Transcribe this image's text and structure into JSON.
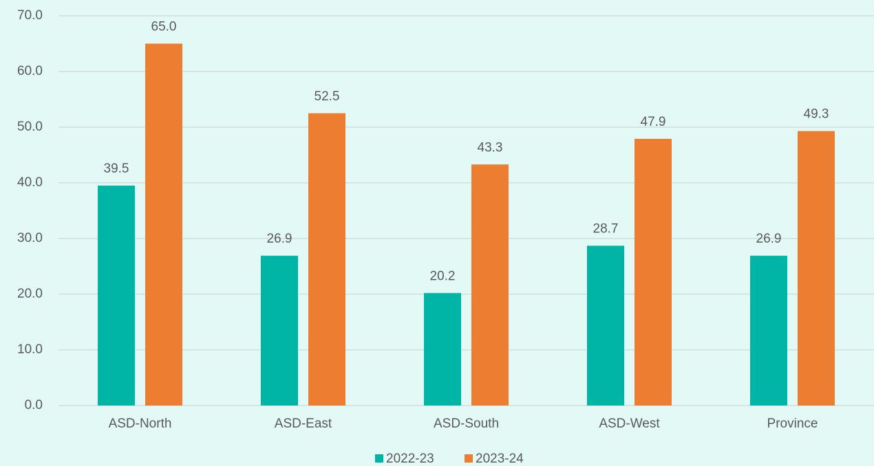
{
  "chart_data": {
    "type": "bar",
    "categories": [
      "ASD-North",
      "ASD-East",
      "ASD-South",
      "ASD-West",
      "Province"
    ],
    "series": [
      {
        "name": "2022-23",
        "color": "#00b5a5",
        "values": [
          39.5,
          26.9,
          20.2,
          28.7,
          26.9
        ],
        "value_labels": [
          "39.5",
          "26.9",
          "20.2",
          "28.7",
          "26.9"
        ]
      },
      {
        "name": "2023-24",
        "color": "#ed7d31",
        "values": [
          65.0,
          52.5,
          43.3,
          47.9,
          49.3
        ],
        "value_labels": [
          "65.0",
          "52.5",
          "43.3",
          "47.9",
          "49.3"
        ]
      }
    ],
    "ylim": [
      0,
      70
    ],
    "yticks": [
      {
        "value": 0,
        "label": "0.0"
      },
      {
        "value": 10,
        "label": "10.0"
      },
      {
        "value": 20,
        "label": "20.0"
      },
      {
        "value": 30,
        "label": "30.0"
      },
      {
        "value": 40,
        "label": "40.0"
      },
      {
        "value": 50,
        "label": "50.0"
      },
      {
        "value": 60,
        "label": "60.0"
      },
      {
        "value": 70,
        "label": "70.0"
      }
    ],
    "grid": true,
    "legend": "bottom"
  }
}
